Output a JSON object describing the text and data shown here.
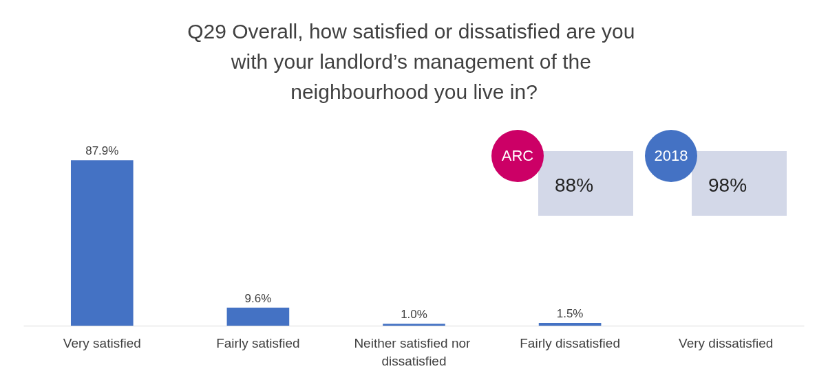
{
  "chart_data": {
    "type": "bar",
    "title": "Q29 Overall, how satisfied or dissatisfied are you with your landlord’s management of the neighbourhood you live in?",
    "categories": [
      "Very satisfied",
      "Fairly satisfied",
      "Neither satisfied nor dissatisfied",
      "Fairly dissatisfied",
      "Very dissatisfied"
    ],
    "values": [
      87.9,
      9.6,
      1.0,
      1.5,
      null
    ],
    "color": "#4472c4",
    "value_labels": [
      "87.9%",
      "9.6%",
      "1.0%",
      "1.5%",
      null
    ],
    "annotations": [
      "ARC",
      "88%",
      "2018",
      "98%"
    ]
  }
}
